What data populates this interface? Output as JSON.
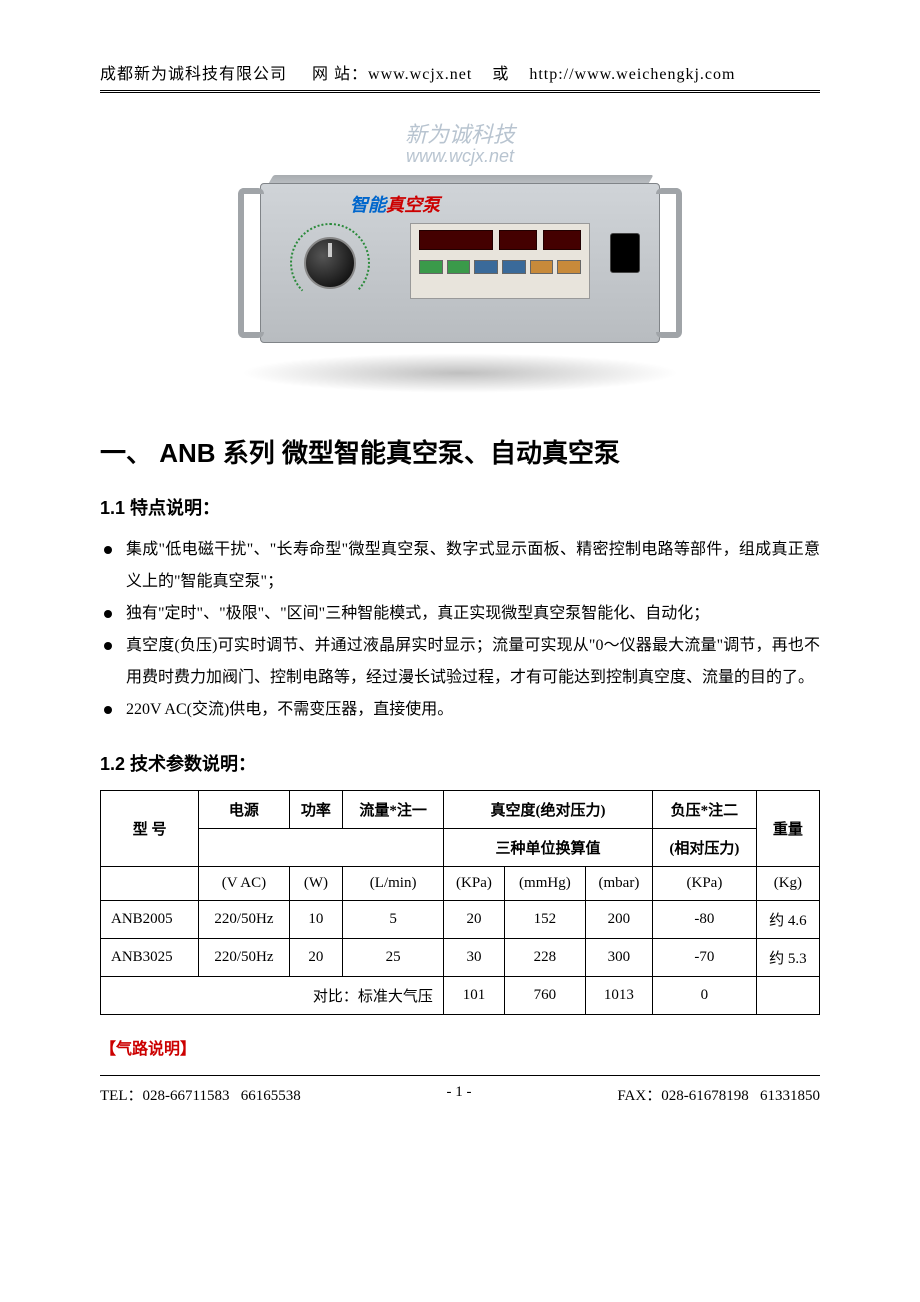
{
  "header": {
    "company": "成都新为诚科技有限公司",
    "site_label": "网 站：",
    "site1": "www.wcjx.net",
    "or": "或",
    "site2": "http://www.weichengkj.com"
  },
  "watermark": {
    "line1": "新为诚科技",
    "line2": "www.wcjx.net"
  },
  "panel": {
    "blue": "智能",
    "red": "真空泵"
  },
  "section_title": "一、 ANB 系列 微型智能真空泵、自动真空泵",
  "sub1": "1.1 特点说明：",
  "features": [
    "集成\"低电磁干扰\"、\"长寿命型\"微型真空泵、数字式显示面板、精密控制电路等部件，组成真正意义上的\"智能真空泵\"；",
    "独有\"定时\"、\"极限\"、\"区间\"三种智能模式，真正实现微型真空泵智能化、自动化；",
    "真空度(负压)可实时调节、并通过液晶屏实时显示；流量可实现从\"0～仪器最大流量\"调节，再也不用费时费力加阀门、控制电路等，经过漫长试验过程，才有可能达到控制真空度、流量的目的了。",
    "220V AC(交流)供电，不需变压器，直接使用。"
  ],
  "sub2": "1.2 技术参数说明：",
  "table": {
    "h_model": "型  号",
    "h_power": "电源",
    "h_watt": "功率",
    "h_flow": "流量*注一",
    "h_vac": "真空度(绝对压力)",
    "h_vac2": "三种单位换算值",
    "h_neg": "负压*注二",
    "h_neg2": "(相对压力)",
    "h_weight": "重量",
    "u_vac": "(V AC)",
    "u_w": "(W)",
    "u_lmin": "(L/min)",
    "u_kpa": "(KPa)",
    "u_mmhg": "(mmHg)",
    "u_mbar": "(mbar)",
    "u_kpa2": "(KPa)",
    "u_kg": "(Kg)",
    "rows": [
      {
        "model": "ANB2005",
        "vac": "220/50Hz",
        "w": "10",
        "lmin": "5",
        "kpa": "20",
        "mmhg": "152",
        "mbar": "200",
        "neg": "-80",
        "kg": "约 4.6"
      },
      {
        "model": "ANB3025",
        "vac": "220/50Hz",
        "w": "20",
        "lmin": "25",
        "kpa": "30",
        "mmhg": "228",
        "mbar": "300",
        "neg": "-70",
        "kg": "约 5.3"
      }
    ],
    "compare_label": "对比：标准大气压",
    "compare": {
      "kpa": "101",
      "mmhg": "760",
      "mbar": "1013",
      "neg": "0",
      "kg": ""
    }
  },
  "airpath": "【气路说明】",
  "footer": {
    "tel_label": "TEL：",
    "tel1": "028-66711583",
    "tel2": "66165538",
    "page": "- 1 -",
    "fax_label": "FAX：",
    "fax1": "028-61678198",
    "fax2": "61331850"
  }
}
